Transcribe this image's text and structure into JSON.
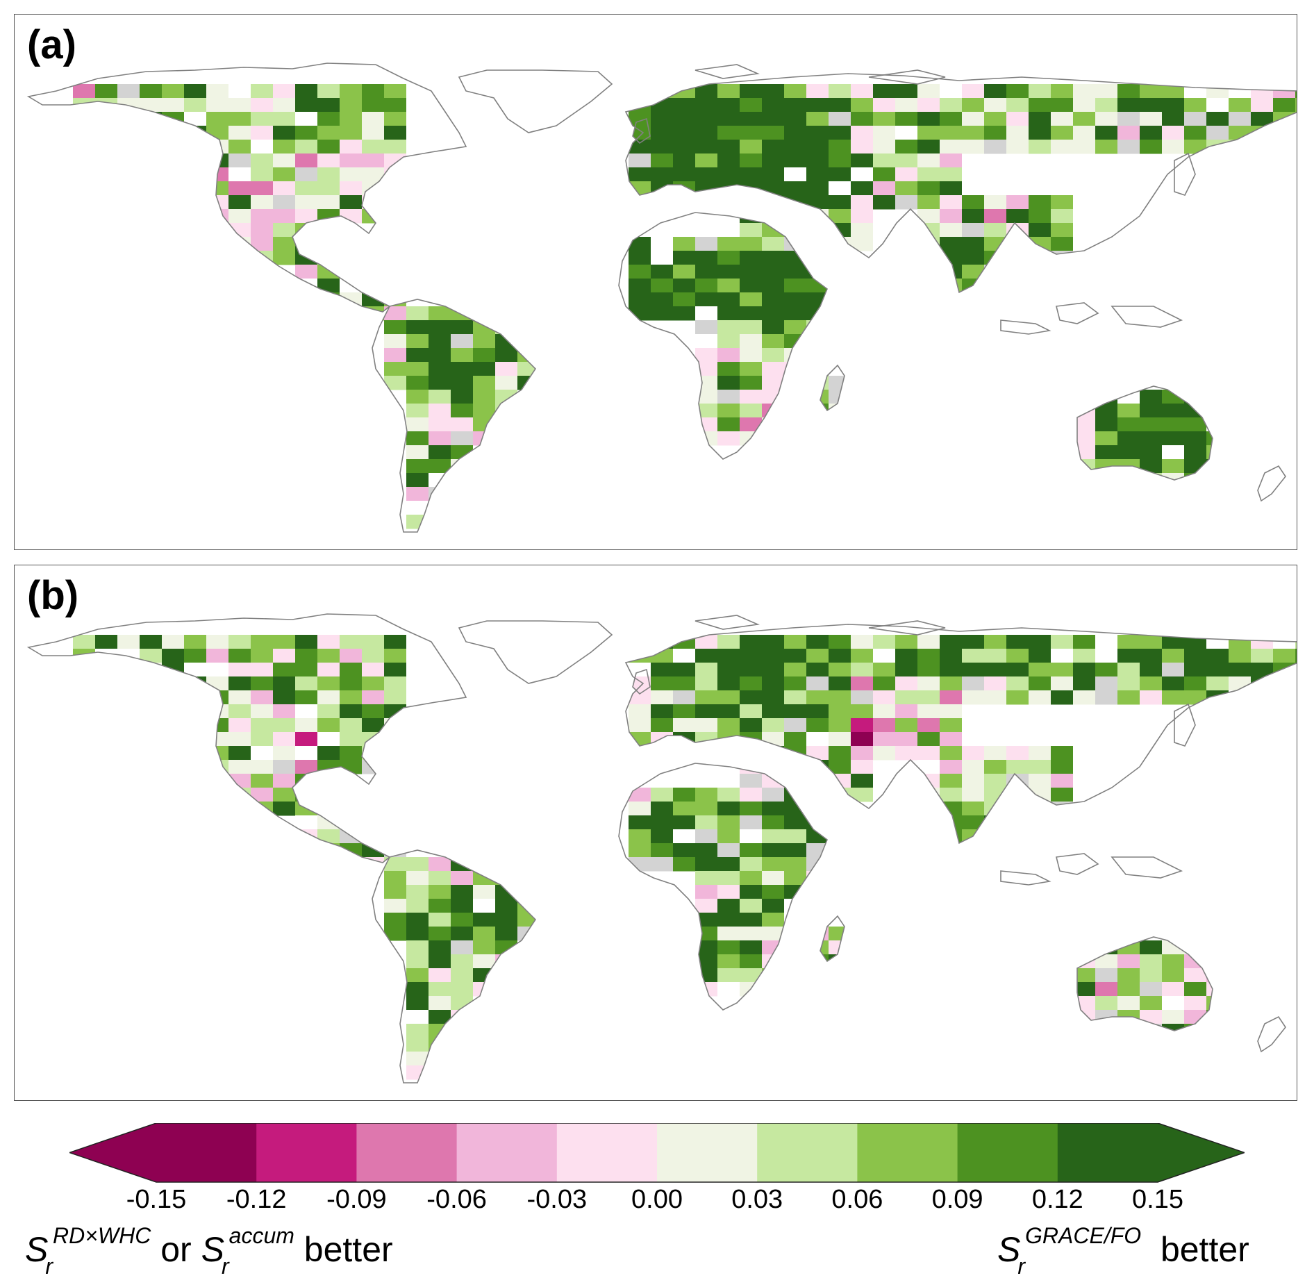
{
  "panels": [
    {
      "label": "(a)"
    },
    {
      "label": "(b)"
    }
  ],
  "colorbar": {
    "ticks": [
      "-0.15",
      "-0.12",
      "-0.09",
      "-0.06",
      "-0.03",
      "0.00",
      "0.03",
      "0.06",
      "0.09",
      "0.12",
      "0.15"
    ],
    "colors": [
      "#8e0152",
      "#c51b7d",
      "#de77ae",
      "#f1b6da",
      "#fde0ef",
      "#f0f4e4",
      "#c6e8a0",
      "#8bc34a",
      "#4d9221",
      "#276419"
    ],
    "extend": "both"
  },
  "legend_left": {
    "symbol": "S",
    "sub1": "r",
    "sup1": "RD×WHC",
    "connector": "or",
    "symbol2": "S",
    "sub2": "r",
    "sup2": "accum",
    "suffix": "better"
  },
  "legend_right": {
    "symbol": "S",
    "sub": "r",
    "sup": "GRACE/FO",
    "suffix": "better"
  },
  "styles": {
    "coastline": "#808080",
    "nodata": "#d3d3d3"
  }
}
